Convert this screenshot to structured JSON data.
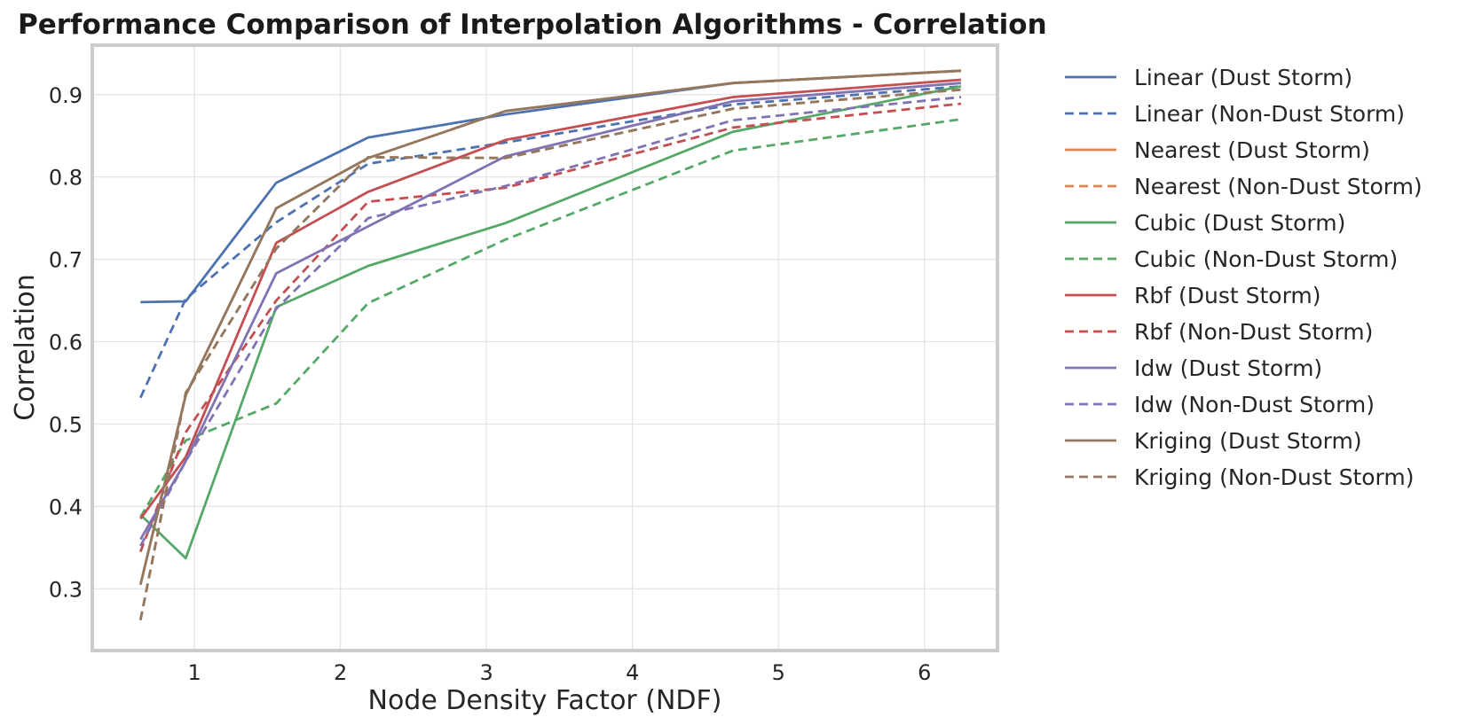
{
  "chart_data": {
    "type": "line",
    "title": "Performance Comparison of Interpolation Algorithms - Correlation",
    "xlabel": "Node Density Factor (NDF)",
    "ylabel": "Correlation",
    "xlim": [
      0.3,
      6.5
    ],
    "ylim": [
      0.225,
      0.96
    ],
    "xticks": [
      1,
      2,
      3,
      4,
      5,
      6
    ],
    "xtick_labels": [
      "1",
      "2",
      "3",
      "4",
      "5",
      "6"
    ],
    "yticks": [
      0.3,
      0.4,
      0.5,
      0.6,
      0.7,
      0.8,
      0.9
    ],
    "ytick_labels": [
      "0.3",
      "0.4",
      "0.5",
      "0.6",
      "0.7",
      "0.8",
      "0.9"
    ],
    "grid": true,
    "legend_position": "outside-right",
    "x": [
      0.63,
      0.94,
      1.56,
      2.19,
      3.13,
      4.69,
      6.25
    ],
    "series": [
      {
        "name": "Linear (Dust Storm)",
        "color": "#4c72b0",
        "dash": "solid",
        "values": [
          0.648,
          0.649,
          0.793,
          0.848,
          0.876,
          0.914,
          0.929
        ]
      },
      {
        "name": "Linear (Non-Dust Storm)",
        "color": "#4c72b0",
        "dash": "dashed",
        "values": [
          0.532,
          0.652,
          0.745,
          0.816,
          0.842,
          0.888,
          0.91
        ]
      },
      {
        "name": "Nearest (Dust Storm)",
        "color": "#dd8452",
        "dash": "solid",
        "values": [
          0.305,
          0.535,
          0.762,
          0.823,
          0.88,
          0.914,
          0.929
        ]
      },
      {
        "name": "Nearest (Non-Dust Storm)",
        "color": "#dd8452",
        "dash": "dashed",
        "values": [
          0.262,
          0.538,
          0.713,
          0.824,
          0.823,
          0.883,
          0.906
        ]
      },
      {
        "name": "Cubic (Dust Storm)",
        "color": "#55a868",
        "dash": "solid",
        "values": [
          0.39,
          0.337,
          0.642,
          0.692,
          0.744,
          0.855,
          0.91
        ]
      },
      {
        "name": "Cubic (Non-Dust Storm)",
        "color": "#55a868",
        "dash": "dashed",
        "values": [
          0.387,
          0.48,
          0.525,
          0.647,
          0.724,
          0.832,
          0.87
        ]
      },
      {
        "name": "Rbf (Dust Storm)",
        "color": "#c44e52",
        "dash": "solid",
        "values": [
          0.385,
          0.46,
          0.72,
          0.782,
          0.845,
          0.897,
          0.918
        ]
      },
      {
        "name": "Rbf (Non-Dust Storm)",
        "color": "#c44e52",
        "dash": "dashed",
        "values": [
          0.345,
          0.49,
          0.65,
          0.77,
          0.787,
          0.86,
          0.889
        ]
      },
      {
        "name": "Idw (Dust Storm)",
        "color": "#8172b3",
        "dash": "solid",
        "values": [
          0.36,
          0.455,
          0.683,
          0.74,
          0.825,
          0.892,
          0.914
        ]
      },
      {
        "name": "Idw (Non-Dust Storm)",
        "color": "#8172b3",
        "dash": "dashed",
        "values": [
          0.352,
          0.455,
          0.64,
          0.75,
          0.789,
          0.869,
          0.897
        ]
      },
      {
        "name": "Kriging (Dust Storm)",
        "color": "#937860",
        "dash": "solid",
        "values": [
          0.305,
          0.535,
          0.762,
          0.823,
          0.88,
          0.914,
          0.929
        ]
      },
      {
        "name": "Kriging (Non-Dust Storm)",
        "color": "#937860",
        "dash": "dashed",
        "values": [
          0.262,
          0.538,
          0.713,
          0.824,
          0.823,
          0.883,
          0.906
        ]
      }
    ]
  }
}
